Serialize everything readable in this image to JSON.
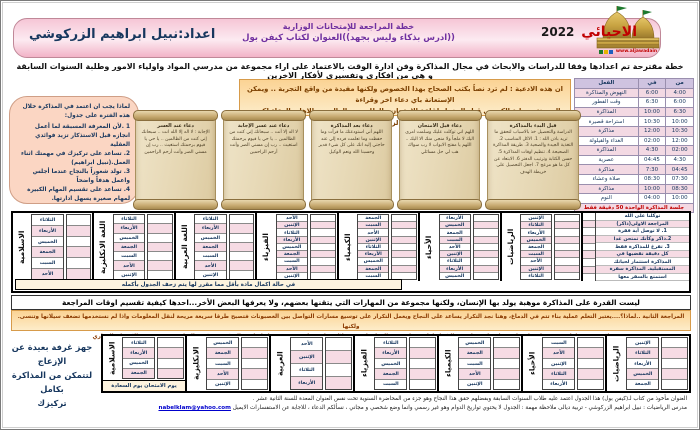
{
  "header": {
    "title": "الاحيائي",
    "year": "2022",
    "center_line1": "خطة المراجعة للإمتحانات الوزارية",
    "center_line2": "((ادرس بذكاء وليس بجهد))العنوان لكتاب كيفن بول",
    "author": "اعداد:نبيل ابراهيم الزركوشي",
    "logo_caption": "www.aljawadain",
    "colors": {
      "bar_pink": "#f2b3c7",
      "title_red": "#c00000",
      "center_purple": "#7030a0",
      "author_navy": "#17375e",
      "gold": "#c8a342"
    }
  },
  "intro_line": "خطة مقترحة تم اعدادها وفقا للدراسات والابحاث في مجال المذاكرة وفن ادارة الوقت بالاعتماد على اراء مجموعة من مدرسي المواد واولياء الامور وطلبة السنوات السابقة و هي من افكاري وتفسيري لأفكار الاخرين",
  "dua_box": {
    "line1": "ان هذه الادعية : لم ترد نصاً بكتب الصحاح بهذا الخصوص ولكنها مفيدة من واقع التجربة .. ويمكن الإستعانة باي دعاء اخر وقراءة",
    "line2": "المعوذتين واية الكرسي قبل الدخول لقاعة الامتحان والطلب من الوالدين والاهل بالدعاء لكم .. نبيل ابراهيم الزركوشي"
  },
  "why_box": {
    "title": "لماذا يجب ان اعتمد في المذاكرة خلال هذه الفترة على جدول:",
    "items": [
      "1 .لأن المعرفة المسبقة لما أعمل انجازه قبل الاستذكار تزيد فوائدي العقلية",
      "2. تساعد على تركيزك في مهمتك اثناء العمل.(نبيل ابراهيم)",
      "3. تولد شعوراً بالنجاح عندما أجلس واعمل هدفاً واضحاً",
      "4. تساعد على تقسيم المهام الكبيرة لمهام صغيرة يسهل ادارتها."
    ]
  },
  "daily_schedule": {
    "headers": [
      "من",
      "في",
      "الفعل"
    ],
    "rows": [
      [
        "4:00",
        "6:00",
        "النهوض والمذاكرة"
      ],
      [
        "6:00",
        "6:30",
        "وقت الفطور"
      ],
      [
        "6:30",
        "10:00",
        "المذاكرة"
      ],
      [
        "10:00",
        "10:30",
        "استراحة قصيرة"
      ],
      [
        "10:30",
        "12:00",
        "مذاكرة"
      ],
      [
        "12:00",
        "02:00",
        "الغداء والقيلولة"
      ],
      [
        "02:00",
        "4:30",
        "المذاكرة"
      ],
      [
        "4:30",
        "04:45",
        "عصرية"
      ],
      [
        "04:45",
        "7:30",
        "مذاكرة"
      ],
      [
        "07:30",
        "08:30",
        "صلاة وعشاء"
      ],
      [
        "08:30",
        "10:00",
        "مذاكرة"
      ],
      [
        "10:00",
        "04:00",
        "النوم"
      ]
    ],
    "note": "جلسة المذاكرة الواحدة 50 دقيقة فقط"
  },
  "scrolls": [
    {
      "title": "قبل البدء بالمذاكرة",
      "text": "الدراسة والتحصيل خذ بالاسباب لتحقق ما تريد باذن الله : 1. الاكل المناسب 2. التغذية الجيدة والصحية 3. طريقة المذاكرة الصحيحة 4. تنظيم اوقات المذاكرة 5. حسن الكتابة وترتيب الدفتر 6. الابتعاد عن كل ما هو مزعج 7. اجعل التحصيل على خريطة الهدف"
    },
    {
      "title": "دعاء قبل الامتحان",
      "text": "اللهم اني توكلت عليك وسلمت امري اليك لا ملجأ ولا منجى منك الا اليك .. اللهم يا مفتح الابواب لا رب سواك هب لي حل مسائلي"
    },
    {
      "title": "دعاء بعد المذاكرة",
      "text": "اللهم أني استودعتك ما قرأت وما حفظت وما تعلمت فرده إلي عند حاجتي إليه انك على كل شيء قدير وحسبنا الله ونعم الوكيل"
    },
    {
      "title": "دعاء عند عسر الإجابة",
      "text": "لا اله إلا أنت .. سبحانك إني كنت من الظالمين .. يا حي يا قيوم برحمتك استغيث .. رب إن مسني الضر وأنت أرحم الراحمين"
    },
    {
      "title": "دعاء عند العسر",
      "text": "الإجابة : لا اله إلا الله انت .. سبحانك إني كنت من الظالمين .. يا حي يا قيوم برحمتك استغيث .. رب إن مسني الضر وأنت أرحم الراحمين"
    }
  ],
  "review1": {
    "notes": [
      "توكلنا على الله",
      "المراجعة الاولى(ذاكر)",
      "1. لا توصل أية فقرة",
      "2.ذاكر وكأنك تمتحن غدا",
      "3. تفرغ للمذاكرة فقط",
      "كل دقيقة تقضيها في",
      "المذاكرة استثمار لحياتك",
      "المستقبلية. المذاكرة سفرة",
      "استمتع بالسفر معها"
    ],
    "subjects": [
      {
        "name": "الرياضيات",
        "days": [
          "الإثنين",
          "الثلاثاء",
          "الأربعاء",
          "الخميس",
          "الجمعة",
          "السبت",
          "الأحد",
          "الإثنين",
          "الثلاثاء"
        ]
      },
      {
        "name": "الأحياء",
        "days": [
          "الأربعاء",
          "الخميس",
          "الجمعة",
          "السبت",
          "الأحد",
          "الإثنين",
          "الثلاثاء",
          "الأربعاء",
          "الخميس"
        ]
      },
      {
        "name": "الكيمياء",
        "days": [
          "الجمعة",
          "السبت",
          "الأحد",
          "الإثنين",
          "الثلاثاء",
          "الأربعاء",
          "الخميس",
          "الجمعة",
          "السبت"
        ]
      },
      {
        "name": "الفيزياء",
        "days": [
          "الأحد",
          "الإثنين",
          "الثلاثاء",
          "الأربعاء",
          "الخميس",
          "الجمعة",
          "السبت",
          "الأحد",
          "الإثنين"
        ]
      },
      {
        "name": "اللغة العربية",
        "days": [
          "الثلاثاء",
          "الأربعاء",
          "الخميس",
          "الجمعة",
          "السبت",
          "الأحد",
          "الإثنين"
        ]
      },
      {
        "name": "اللغة الانكليزية",
        "days": [
          "الثلاثاء",
          "الأربعاء",
          "الخميس",
          "الجمعة",
          "السبت",
          "الأحد",
          "الإثنين"
        ]
      },
      {
        "name": "الاسلامية",
        "days": [
          "الثلاثاء",
          "الأربعاء",
          "الخميس",
          "الجمعة",
          "السبت",
          "الأحد"
        ]
      }
    ],
    "note": "في حالة اكمال مادة بأقل مما مقرر لها يتم زحف الجدول بأكمله"
  },
  "skills_banner": "ليست القدرة على المذاكرة موهبة يولد بها الإنسان، ولكنها مجموعة من المهارات التي يتقنها بعضهم، ولا يعرفها البعض الأخر...احدها كيفية تقسيم اوقات المراجعة",
  "review2_banner": {
    "line1": "المراجعة الثانية ..لماذا؟....يعتبر التعلم عملية بناء تتم في الدماغ، وهنا نجد التكرار يساعد على النجاح ويعمل التكرار على توسيع مسارات التواصل بين العصبونات فتصبح طرقا سريعة مريحة لنقل المعلومات واذا لم نستخدمها تضعف سيلانها وتنسى. ولكنها",
    "line2": "لا تختفي تماما حيث يسهل تعلم واسترجاع ما نسيناه عند التكرار لذا يجب ان نجدد المعلومات من خلال مراجعة ثانية ......... نبيل ابراهيم الزركوشي تكتب التواريخ حسب موعد الامتحان الوزاري"
  },
  "review2": {
    "subjects": [
      {
        "name": "الرياضيات",
        "days": [
          "الإثنين",
          "الثلاثاء",
          "الأربعاء",
          "الخميس",
          "الجمعة"
        ]
      },
      {
        "name": "الأحياء",
        "days": [
          "السبت",
          "الأحد",
          "الإثنين",
          "الثلاثاء",
          "الأربعاء"
        ]
      },
      {
        "name": "الكيمياء",
        "days": [
          "الخميس",
          "الجمعة",
          "السبت",
          "الأحد",
          "الإثنين"
        ]
      },
      {
        "name": "الفيزياء",
        "days": [
          "الثلاثاء",
          "الأربعاء",
          "الخميس",
          "الجمعة",
          "السبت"
        ]
      },
      {
        "name": "العربية",
        "days": [
          "الأحد",
          "الإثنين",
          "الثلاثاء",
          "الأربعاء"
        ]
      },
      {
        "name": "الانكليزية",
        "days": [
          "الخميس",
          "الجمعة",
          "السبت",
          "الأحد",
          "الإثنين"
        ]
      },
      {
        "name": "الاسلامية",
        "days": [
          "الثلاثاء",
          "الأربعاء",
          "الخميس",
          "الجمعة"
        ],
        "footer": "يوم الامتحان يوم السعادة"
      }
    ]
  },
  "room_tip": {
    "line1": "جهز غرفة بعيدة عن الإزعاج",
    "line2": "لتتمكن من المذاكرة بكامل",
    "line3": "تركيزك"
  },
  "footer": {
    "line1": "العنوان مأخوذ من كتاب لـ(كيفن بول) هذا الجدول اعتمد عليه طلاب السنوات السابقة وبفضلهم حقق هذا النجاح وهو جزء من المحاضرة السنوية تحت نفس العنوان المعدة للسنة الثانية عشر .",
    "line2": "مدرس الرياضيات : نبيل ابراهيم الزركوشي - تربية ديالى      ملاحظة مهمة : الجدول لا يحتوي تواريخ الدوام وهو غير رسمي وانما وضع شخصي و مجاني ، نسألكم الدعاء ، للاجابة عن الاستفسارات الايميل",
    "email": "nabelklam@yahoo.com"
  }
}
